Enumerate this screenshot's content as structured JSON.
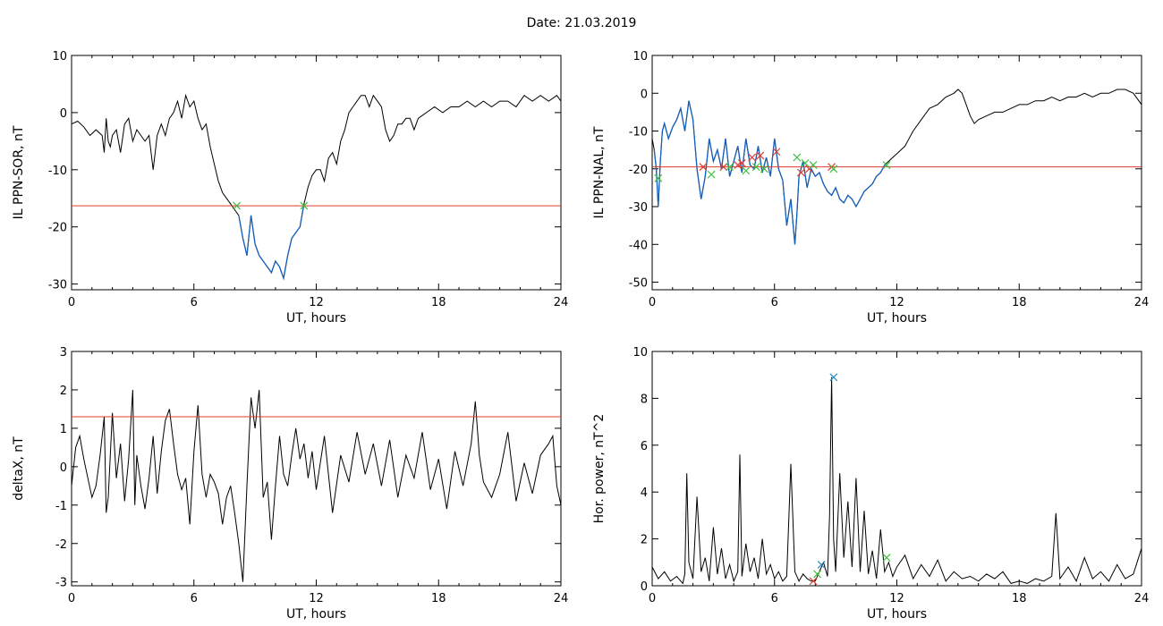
{
  "header": {
    "date_label": "Date:  21.03.2019"
  },
  "colors": {
    "axis": "#000000",
    "trace": "#000000",
    "highlight": "#1560bd",
    "threshold": "#e03a2f",
    "mark_green": "#3cbf3c",
    "mark_red": "#e03a2f",
    "mark_blue": "#2a8cc0"
  },
  "chart_data": [
    {
      "id": "sor",
      "type": "line",
      "xlabel": "UT, hours",
      "ylabel": "IL PPN-SOR, nT",
      "xlim": [
        0,
        24
      ],
      "ylim": [
        -31,
        10
      ],
      "xticks": [
        0,
        6,
        12,
        18,
        24
      ],
      "yticks": [
        -30,
        -20,
        -10,
        0,
        10
      ],
      "threshold": -16.3,
      "highlight_range": [
        8.1,
        11.4
      ],
      "series": [
        {
          "x": [
            0,
            0.3,
            0.6,
            0.9,
            1.2,
            1.5,
            1.6,
            1.7,
            1.8,
            1.9,
            2.0,
            2.2,
            2.4,
            2.6,
            2.8,
            3.0,
            3.2,
            3.4,
            3.6,
            3.8,
            4.0,
            4.2,
            4.4,
            4.6,
            4.8,
            5.0,
            5.2,
            5.4,
            5.6,
            5.8,
            6.0,
            6.2,
            6.4,
            6.6,
            6.8,
            7.0,
            7.2,
            7.4,
            7.6,
            7.8,
            8.0,
            8.2,
            8.4,
            8.6,
            8.8,
            9.0,
            9.2,
            9.4,
            9.6,
            9.8,
            10.0,
            10.2,
            10.4,
            10.6,
            10.8,
            11.0,
            11.2,
            11.4,
            11.6,
            11.8,
            12.0,
            12.2,
            12.4,
            12.6,
            12.8,
            13.0,
            13.2,
            13.4,
            13.6,
            13.8,
            14.0,
            14.2,
            14.4,
            14.6,
            14.8,
            15.0,
            15.2,
            15.4,
            15.6,
            15.8,
            16.0,
            16.2,
            16.4,
            16.6,
            16.8,
            17.0,
            17.4,
            17.8,
            18.2,
            18.6,
            19.0,
            19.4,
            19.8,
            20.2,
            20.6,
            21.0,
            21.4,
            21.8,
            22.2,
            22.6,
            23.0,
            23.4,
            23.8,
            24.0
          ],
          "y": [
            -2,
            -1.5,
            -2.5,
            -4,
            -3,
            -4,
            -7,
            -1,
            -5,
            -6,
            -4,
            -3,
            -7,
            -2,
            -1,
            -5,
            -3,
            -4,
            -5,
            -4,
            -10,
            -4,
            -2,
            -4,
            -1,
            0,
            2,
            -1,
            3,
            1,
            2,
            -1,
            -3,
            -2,
            -6,
            -9,
            -12,
            -14,
            -15,
            -16,
            -17,
            -18,
            -22,
            -25,
            -18,
            -23,
            -25,
            -26,
            -27,
            -28,
            -26,
            -27,
            -29,
            -25,
            -22,
            -21,
            -20,
            -16,
            -13,
            -11,
            -10,
            -10,
            -12,
            -8,
            -7,
            -9,
            -5,
            -3,
            0,
            1,
            2,
            3,
            3,
            1,
            3,
            2,
            1,
            -3,
            -5,
            -4,
            -2,
            -2,
            -1,
            -1,
            -3,
            -1,
            0,
            1,
            0,
            1,
            1,
            2,
            1,
            2,
            1,
            2,
            2,
            1,
            3,
            2,
            3,
            2,
            3,
            2
          ]
        }
      ],
      "markers": [
        {
          "x": 8.1,
          "y": -16.3,
          "color": "green"
        },
        {
          "x": 11.4,
          "y": -16.3,
          "color": "green"
        }
      ]
    },
    {
      "id": "nal",
      "type": "line",
      "xlabel": "UT, hours",
      "ylabel": "IL PPN-NAL, nT",
      "xlim": [
        0,
        24
      ],
      "ylim": [
        -52,
        10
      ],
      "xticks": [
        0,
        6,
        12,
        18,
        24
      ],
      "yticks": [
        -50,
        -40,
        -30,
        -20,
        -10,
        0,
        10
      ],
      "threshold": -19.5,
      "highlight_range": [
        0.1,
        11.5
      ],
      "series": [
        {
          "x": [
            0,
            0.1,
            0.2,
            0.3,
            0.4,
            0.5,
            0.6,
            0.8,
            1.0,
            1.2,
            1.4,
            1.6,
            1.8,
            2.0,
            2.2,
            2.4,
            2.6,
            2.8,
            3.0,
            3.2,
            3.4,
            3.6,
            3.8,
            4.0,
            4.2,
            4.4,
            4.6,
            4.8,
            5.0,
            5.2,
            5.4,
            5.6,
            5.8,
            6.0,
            6.2,
            6.4,
            6.6,
            6.8,
            7.0,
            7.1,
            7.2,
            7.4,
            7.6,
            7.8,
            8.0,
            8.2,
            8.4,
            8.6,
            8.8,
            9.0,
            9.2,
            9.4,
            9.6,
            9.8,
            10.0,
            10.2,
            10.4,
            10.6,
            10.8,
            11.0,
            11.2,
            11.4,
            11.6,
            11.8,
            12.0,
            12.4,
            12.8,
            13.2,
            13.6,
            14.0,
            14.4,
            14.8,
            15.0,
            15.2,
            15.4,
            15.6,
            15.8,
            16.0,
            16.4,
            16.8,
            17.2,
            17.6,
            18.0,
            18.4,
            18.8,
            19.2,
            19.6,
            20.0,
            20.4,
            20.8,
            21.2,
            21.6,
            22.0,
            22.4,
            22.8,
            23.2,
            23.6,
            24.0
          ],
          "y": [
            -12,
            -15,
            -20,
            -30,
            -18,
            -10,
            -8,
            -12,
            -9,
            -7,
            -4,
            -10,
            -2,
            -7,
            -20,
            -28,
            -22,
            -12,
            -18,
            -15,
            -20,
            -12,
            -22,
            -18,
            -14,
            -21,
            -12,
            -19,
            -20,
            -14,
            -21,
            -17,
            -22,
            -12,
            -20,
            -23,
            -35,
            -28,
            -40,
            -32,
            -22,
            -18,
            -25,
            -20,
            -22,
            -21,
            -24,
            -26,
            -27,
            -25,
            -28,
            -29,
            -27,
            -28,
            -30,
            -28,
            -26,
            -25,
            -24,
            -22,
            -21,
            -19,
            -18,
            -17,
            -16,
            -14,
            -10,
            -7,
            -4,
            -3,
            -1,
            0,
            1,
            0,
            -3,
            -6,
            -8,
            -7,
            -6,
            -5,
            -5,
            -4,
            -3,
            -3,
            -2,
            -2,
            -1,
            -2,
            -1,
            -1,
            0,
            -1,
            0,
            0,
            1,
            1,
            0,
            -3
          ]
        }
      ],
      "markers": [
        {
          "x": 0.3,
          "y": -22.5,
          "color": "green"
        },
        {
          "x": 2.5,
          "y": -19.5,
          "color": "red"
        },
        {
          "x": 2.9,
          "y": -21.5,
          "color": "green"
        },
        {
          "x": 3.5,
          "y": -19.5,
          "color": "red"
        },
        {
          "x": 3.8,
          "y": -19.5,
          "color": "green"
        },
        {
          "x": 4.2,
          "y": -19,
          "color": "red"
        },
        {
          "x": 4.4,
          "y": -18.5,
          "color": "red"
        },
        {
          "x": 4.6,
          "y": -20.5,
          "color": "green"
        },
        {
          "x": 4.9,
          "y": -17,
          "color": "red"
        },
        {
          "x": 5.1,
          "y": -19.5,
          "color": "green"
        },
        {
          "x": 5.3,
          "y": -16.5,
          "color": "red"
        },
        {
          "x": 5.5,
          "y": -20,
          "color": "green"
        },
        {
          "x": 6.1,
          "y": -15.5,
          "color": "red"
        },
        {
          "x": 7.1,
          "y": -17,
          "color": "green"
        },
        {
          "x": 7.3,
          "y": -21,
          "color": "red"
        },
        {
          "x": 7.5,
          "y": -18.5,
          "color": "green"
        },
        {
          "x": 7.7,
          "y": -20,
          "color": "red"
        },
        {
          "x": 7.9,
          "y": -19,
          "color": "green"
        },
        {
          "x": 8.8,
          "y": -19.5,
          "color": "red"
        },
        {
          "x": 8.9,
          "y": -20,
          "color": "green"
        },
        {
          "x": 11.5,
          "y": -19,
          "color": "green"
        }
      ]
    },
    {
      "id": "deltax",
      "type": "line",
      "xlabel": "UT, hours",
      "ylabel": "deltaX, nT",
      "xlim": [
        0,
        24
      ],
      "ylim": [
        -3.1,
        3
      ],
      "xticks": [
        0,
        6,
        12,
        18,
        24
      ],
      "yticks": [
        -3,
        -2,
        -1,
        0,
        1,
        2,
        3
      ],
      "threshold": 1.3,
      "series": [
        {
          "x": [
            0,
            0.2,
            0.4,
            0.6,
            0.8,
            1.0,
            1.2,
            1.4,
            1.6,
            1.7,
            1.8,
            2.0,
            2.2,
            2.4,
            2.6,
            2.8,
            3.0,
            3.1,
            3.2,
            3.4,
            3.6,
            3.8,
            4.0,
            4.2,
            4.4,
            4.6,
            4.8,
            5.0,
            5.2,
            5.4,
            5.6,
            5.8,
            6.0,
            6.2,
            6.4,
            6.6,
            6.8,
            7.0,
            7.2,
            7.4,
            7.6,
            7.8,
            8.0,
            8.2,
            8.4,
            8.6,
            8.8,
            9.0,
            9.2,
            9.4,
            9.6,
            9.8,
            10.0,
            10.2,
            10.4,
            10.6,
            10.8,
            11.0,
            11.2,
            11.4,
            11.6,
            11.8,
            12.0,
            12.4,
            12.8,
            13.2,
            13.6,
            14.0,
            14.4,
            14.8,
            15.2,
            15.6,
            16.0,
            16.4,
            16.8,
            17.2,
            17.6,
            18.0,
            18.4,
            18.8,
            19.2,
            19.6,
            19.8,
            20.0,
            20.2,
            20.6,
            21.0,
            21.4,
            21.8,
            22.2,
            22.6,
            23.0,
            23.4,
            23.6,
            23.8,
            24.0
          ],
          "y": [
            -0.5,
            0.5,
            0.8,
            0.2,
            -0.3,
            -0.8,
            -0.5,
            0.3,
            1.3,
            -1.2,
            -0.8,
            1.4,
            -0.3,
            0.6,
            -0.9,
            0.2,
            2.0,
            -1.0,
            0.3,
            -0.5,
            -1.1,
            -0.3,
            0.8,
            -0.7,
            0.4,
            1.2,
            1.5,
            0.6,
            -0.2,
            -0.6,
            -0.3,
            -1.5,
            0.4,
            1.6,
            -0.2,
            -0.8,
            -0.2,
            -0.4,
            -0.7,
            -1.5,
            -0.8,
            -0.5,
            -1.2,
            -2.0,
            -3.0,
            -0.5,
            1.8,
            1.0,
            2.0,
            -0.8,
            -0.4,
            -1.9,
            -0.5,
            0.8,
            -0.2,
            -0.5,
            0.3,
            1.0,
            0.2,
            0.6,
            -0.3,
            0.4,
            -0.6,
            0.8,
            -1.2,
            0.3,
            -0.4,
            0.9,
            -0.2,
            0.6,
            -0.5,
            0.7,
            -0.8,
            0.3,
            -0.3,
            0.9,
            -0.6,
            0.2,
            -1.1,
            0.4,
            -0.5,
            0.6,
            1.7,
            0.3,
            -0.4,
            -0.8,
            -0.2,
            0.9,
            -0.9,
            0.1,
            -0.7,
            0.3,
            0.6,
            0.8,
            -0.5,
            -1.0
          ]
        }
      ],
      "markers": []
    },
    {
      "id": "power",
      "type": "line",
      "xlabel": "UT, hours",
      "ylabel": "Hor. power, nT^2",
      "xlim": [
        0,
        24
      ],
      "ylim": [
        0,
        10
      ],
      "xticks": [
        0,
        6,
        12,
        18,
        24
      ],
      "yticks": [
        0,
        2,
        4,
        6,
        8,
        10
      ],
      "series": [
        {
          "x": [
            0,
            0.3,
            0.6,
            0.9,
            1.2,
            1.5,
            1.6,
            1.7,
            1.8,
            2.0,
            2.2,
            2.4,
            2.6,
            2.8,
            3.0,
            3.2,
            3.4,
            3.6,
            3.8,
            4.0,
            4.2,
            4.3,
            4.4,
            4.6,
            4.8,
            5.0,
            5.2,
            5.4,
            5.6,
            5.8,
            6.0,
            6.2,
            6.4,
            6.6,
            6.8,
            7.0,
            7.2,
            7.4,
            7.6,
            7.8,
            8.0,
            8.2,
            8.4,
            8.6,
            8.7,
            8.8,
            8.9,
            9.0,
            9.2,
            9.4,
            9.6,
            9.8,
            10.0,
            10.2,
            10.4,
            10.6,
            10.8,
            11.0,
            11.2,
            11.4,
            11.6,
            11.8,
            12.0,
            12.4,
            12.8,
            13.2,
            13.6,
            14.0,
            14.4,
            14.8,
            15.2,
            15.6,
            16.0,
            16.4,
            16.8,
            17.2,
            17.6,
            18.0,
            18.4,
            18.8,
            19.2,
            19.6,
            19.8,
            20.0,
            20.4,
            20.8,
            21.2,
            21.6,
            22.0,
            22.4,
            22.8,
            23.2,
            23.6,
            24.0
          ],
          "y": [
            0.8,
            0.3,
            0.6,
            0.2,
            0.4,
            0.1,
            0.5,
            4.8,
            1.0,
            0.3,
            3.8,
            0.6,
            1.2,
            0.2,
            2.5,
            0.5,
            1.6,
            0.3,
            0.9,
            0.2,
            0.6,
            5.6,
            0.4,
            1.8,
            0.6,
            1.2,
            0.3,
            2.0,
            0.5,
            0.9,
            0.3,
            0.6,
            0.2,
            0.4,
            5.2,
            0.6,
            0.2,
            0.5,
            0.3,
            0.2,
            0.2,
            0.6,
            1.0,
            0.4,
            3.0,
            8.9,
            2.0,
            0.6,
            4.8,
            1.2,
            3.6,
            0.8,
            4.6,
            0.6,
            3.2,
            0.5,
            1.5,
            0.3,
            2.4,
            0.6,
            1.0,
            0.4,
            0.8,
            1.3,
            0.3,
            0.9,
            0.4,
            1.1,
            0.2,
            0.6,
            0.3,
            0.4,
            0.2,
            0.5,
            0.3,
            0.6,
            0.1,
            0.2,
            0.1,
            0.3,
            0.2,
            0.4,
            3.1,
            0.3,
            0.8,
            0.2,
            1.2,
            0.3,
            0.6,
            0.2,
            0.9,
            0.3,
            0.5,
            1.6
          ]
        }
      ],
      "markers": [
        {
          "x": 8.9,
          "y": 8.9,
          "color": "blue"
        },
        {
          "x": 7.9,
          "y": 0.2,
          "color": "red"
        },
        {
          "x": 8.1,
          "y": 0.5,
          "color": "green"
        },
        {
          "x": 8.3,
          "y": 0.9,
          "color": "blue"
        },
        {
          "x": 11.5,
          "y": 1.2,
          "color": "green"
        }
      ]
    }
  ]
}
